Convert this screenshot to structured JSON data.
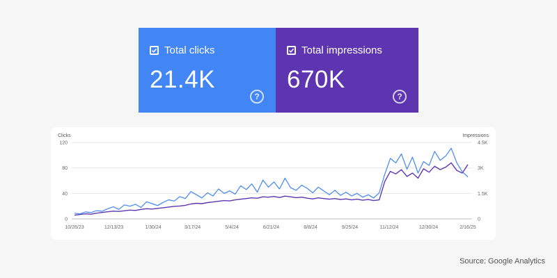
{
  "cards": {
    "clicks": {
      "label": "Total clicks",
      "value": "21.4K",
      "color": "#4285f4"
    },
    "impressions": {
      "label": "Total impressions",
      "value": "670K",
      "color": "#5e35b1"
    },
    "help_symbol": "?"
  },
  "chart_data": {
    "type": "line",
    "left_axis_label": "Clicks",
    "right_axis_label": "Impressions",
    "left_ticks": [
      "120",
      "80",
      "40",
      "0"
    ],
    "left_ylim": [
      0,
      120
    ],
    "right_ticks": [
      "4.5K",
      "3K",
      "1.5K",
      "0"
    ],
    "right_ylim": [
      0,
      4500
    ],
    "x_ticks": [
      "10/26/23",
      "12/13/23",
      "1/30/24",
      "3/17/24",
      "5/4/24",
      "6/21/24",
      "8/8/24",
      "9/25/24",
      "11/12/24",
      "12/30/24",
      "2/16/25"
    ],
    "grid": true,
    "series": [
      {
        "name": "Clicks",
        "color": "#4285f4",
        "axis": "left",
        "x": [
          "10/26/23",
          "11/1/23",
          "11/8/23",
          "11/15/23",
          "11/22/23",
          "11/29/23",
          "12/6/23",
          "12/13/23",
          "12/20/23",
          "12/27/23",
          "1/3/24",
          "1/10/24",
          "1/17/24",
          "1/24/24",
          "1/30/24",
          "2/7/24",
          "2/14/24",
          "2/21/24",
          "2/28/24",
          "3/6/24",
          "3/13/24",
          "3/17/24",
          "3/24/24",
          "3/31/24",
          "4/7/24",
          "4/14/24",
          "4/21/24",
          "4/28/24",
          "5/4/24",
          "5/11/24",
          "5/18/24",
          "5/25/24",
          "6/1/24",
          "6/8/24",
          "6/15/24",
          "6/21/24",
          "6/28/24",
          "7/5/24",
          "7/12/24",
          "7/19/24",
          "7/26/24",
          "8/2/24",
          "8/8/24",
          "8/15/24",
          "8/22/24",
          "8/29/24",
          "9/5/24",
          "9/12/24",
          "9/19/24",
          "9/25/24",
          "10/2/24",
          "10/9/24",
          "10/16/24",
          "10/23/24",
          "10/30/24",
          "11/6/24",
          "11/12/24",
          "11/19/24",
          "11/26/24",
          "12/3/24",
          "12/10/24",
          "12/17/24",
          "12/24/24",
          "12/30/24",
          "1/6/25",
          "1/13/25",
          "1/20/25",
          "1/27/25",
          "2/3/25",
          "2/10/25",
          "2/16/25",
          "2/23/25"
        ],
        "values": [
          9,
          8,
          11,
          10,
          13,
          12,
          16,
          19,
          15,
          22,
          20,
          23,
          18,
          27,
          24,
          21,
          26,
          30,
          28,
          35,
          32,
          43,
          38,
          33,
          41,
          36,
          47,
          40,
          44,
          39,
          52,
          46,
          55,
          42,
          61,
          50,
          58,
          47,
          64,
          49,
          45,
          53,
          48,
          41,
          50,
          44,
          38,
          45,
          37,
          42,
          36,
          40,
          34,
          38,
          33,
          41,
          70,
          95,
          88,
          102,
          78,
          97,
          72,
          90,
          84,
          106,
          92,
          99,
          111,
          88,
          74,
          66
        ]
      },
      {
        "name": "Impressions",
        "color": "#5e35b1",
        "axis": "right",
        "x": [
          "10/26/23",
          "11/1/23",
          "11/8/23",
          "11/15/23",
          "11/22/23",
          "11/29/23",
          "12/6/23",
          "12/13/23",
          "12/20/23",
          "12/27/23",
          "1/3/24",
          "1/10/24",
          "1/17/24",
          "1/24/24",
          "1/30/24",
          "2/7/24",
          "2/14/24",
          "2/21/24",
          "2/28/24",
          "3/6/24",
          "3/13/24",
          "3/17/24",
          "3/24/24",
          "3/31/24",
          "4/7/24",
          "4/14/24",
          "4/21/24",
          "4/28/24",
          "5/4/24",
          "5/11/24",
          "5/18/24",
          "5/25/24",
          "6/1/24",
          "6/8/24",
          "6/15/24",
          "6/21/24",
          "6/28/24",
          "7/5/24",
          "7/12/24",
          "7/19/24",
          "7/26/24",
          "8/2/24",
          "8/8/24",
          "8/15/24",
          "8/22/24",
          "8/29/24",
          "9/5/24",
          "9/12/24",
          "9/19/24",
          "9/25/24",
          "10/2/24",
          "10/9/24",
          "10/16/24",
          "10/23/24",
          "10/30/24",
          "11/6/24",
          "11/12/24",
          "11/19/24",
          "11/26/24",
          "12/3/24",
          "12/10/24",
          "12/17/24",
          "12/24/24",
          "12/30/24",
          "1/6/25",
          "1/13/25",
          "1/20/25",
          "1/27/25",
          "2/3/25",
          "2/10/25",
          "2/16/25",
          "2/23/25"
        ],
        "values": [
          220,
          260,
          300,
          280,
          340,
          380,
          420,
          460,
          440,
          480,
          520,
          500,
          560,
          600,
          580,
          620,
          660,
          700,
          740,
          760,
          800,
          880,
          920,
          900,
          960,
          1000,
          1040,
          1080,
          1060,
          1120,
          1160,
          1200,
          1240,
          1220,
          1300,
          1280,
          1320,
          1260,
          1340,
          1300,
          1250,
          1280,
          1220,
          1180,
          1240,
          1200,
          1160,
          1200,
          1140,
          1180,
          1120,
          1160,
          1100,
          1140,
          1080,
          1120,
          2200,
          2800,
          2650,
          2900,
          2500,
          2700,
          2400,
          2950,
          2750,
          3100,
          2900,
          3050,
          3300,
          2850,
          2700,
          3200
        ]
      }
    ]
  },
  "source": "Source: Google Analytics"
}
